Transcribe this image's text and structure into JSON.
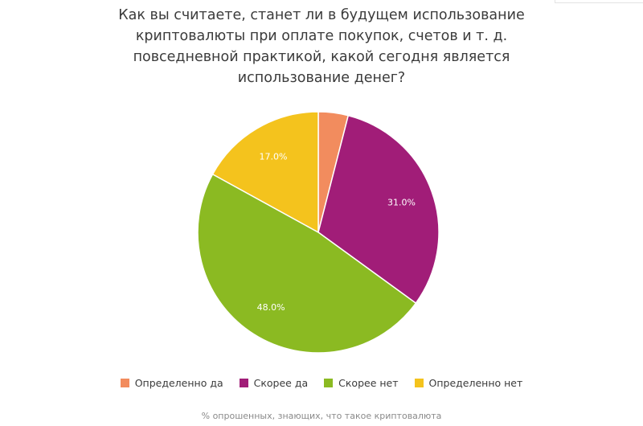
{
  "title_lines": [
    "Как вы считаете, станет ли в будущем использование",
    "криптовалюты при оплате покупок, счетов и т. д.",
    "повседневной практикой, какой сегодня является",
    "использование денег?"
  ],
  "chart_data": {
    "type": "pie",
    "slices": [
      {
        "label": "Определенно да",
        "value": 4.0,
        "color": "#f28c5e",
        "data_label": ""
      },
      {
        "label": "Скорее да",
        "value": 31.0,
        "color": "#a11d78",
        "data_label": "31.0%"
      },
      {
        "label": "Скорее нет",
        "value": 48.0,
        "color": "#8bba22",
        "data_label": "48.0%"
      },
      {
        "label": "Определенно нет",
        "value": 17.0,
        "color": "#f4c31d",
        "data_label": "17.0%"
      }
    ],
    "legend_position": "bottom",
    "footnote": "% опрошенных, знающих, что такое криптовалюта"
  }
}
